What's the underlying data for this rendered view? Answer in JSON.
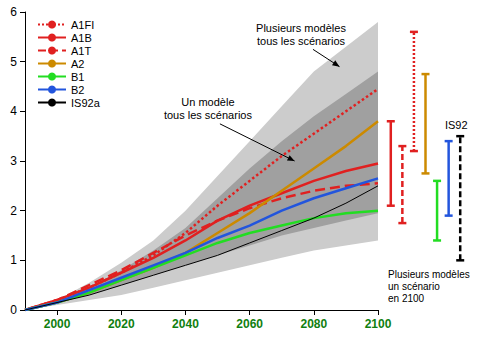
{
  "chart_data": {
    "type": "line",
    "x": [
      1990,
      2000,
      2010,
      2020,
      2030,
      2040,
      2050,
      2060,
      2070,
      2080,
      2090,
      2100
    ],
    "xlim": [
      1990,
      2100
    ],
    "xticks": [
      2000,
      2020,
      2040,
      2060,
      2080,
      2100
    ],
    "ylim": [
      0,
      6
    ],
    "yticks": [
      0,
      1,
      2,
      3,
      4,
      5,
      6
    ],
    "grid": false,
    "legend": "upper left",
    "marker": "none",
    "series": [
      {
        "name": "A1FI",
        "color": "#e02020",
        "line_style": "dotted",
        "values": [
          0,
          0.2,
          0.45,
          0.75,
          1.1,
          1.55,
          2.1,
          2.6,
          3.1,
          3.55,
          4.0,
          4.45
        ]
      },
      {
        "name": "A1B",
        "color": "#e02020",
        "line_style": "solid",
        "values": [
          0,
          0.2,
          0.45,
          0.75,
          1.05,
          1.4,
          1.8,
          2.1,
          2.35,
          2.6,
          2.8,
          2.95
        ]
      },
      {
        "name": "A1T",
        "color": "#e02020",
        "line_style": "dashed",
        "values": [
          0,
          0.2,
          0.5,
          0.8,
          1.15,
          1.5,
          1.8,
          2.05,
          2.25,
          2.4,
          2.5,
          2.55
        ]
      },
      {
        "name": "A2",
        "color": "#cc8a00",
        "line_style": "solid",
        "values": [
          0,
          0.15,
          0.35,
          0.6,
          0.85,
          1.15,
          1.55,
          1.95,
          2.4,
          2.85,
          3.3,
          3.8
        ]
      },
      {
        "name": "B1",
        "color": "#22dd22",
        "line_style": "solid",
        "values": [
          0,
          0.15,
          0.35,
          0.6,
          0.85,
          1.1,
          1.35,
          1.55,
          1.7,
          1.85,
          1.95,
          2.0
        ]
      },
      {
        "name": "B2",
        "color": "#2255dd",
        "line_style": "solid",
        "values": [
          0,
          0.15,
          0.4,
          0.65,
          0.9,
          1.15,
          1.45,
          1.7,
          2.0,
          2.25,
          2.45,
          2.65
        ]
      },
      {
        "name": "IS92a",
        "color": "#000000",
        "line_style": "solid",
        "values": [
          0,
          0.15,
          0.3,
          0.5,
          0.7,
          0.9,
          1.1,
          1.35,
          1.6,
          1.85,
          2.15,
          2.5
        ]
      }
    ],
    "bands": [
      {
        "label": "Plusieurs modèles\ntous les scénarios",
        "color": "#cccccc",
        "lower": [
          0,
          0.1,
          0.2,
          0.3,
          0.45,
          0.6,
          0.75,
          0.9,
          1.05,
          1.2,
          1.3,
          1.4
        ],
        "upper": [
          0,
          0.2,
          0.55,
          0.95,
          1.4,
          2.0,
          2.7,
          3.4,
          4.1,
          4.8,
          5.3,
          5.8
        ]
      },
      {
        "label": "Un modèle\ntous les scénarios",
        "color": "#a0a0a0",
        "lower": [
          0,
          0.15,
          0.3,
          0.5,
          0.7,
          0.9,
          1.1,
          1.3,
          1.5,
          1.65,
          1.8,
          1.95
        ],
        "upper": [
          0,
          0.2,
          0.45,
          0.8,
          1.2,
          1.65,
          2.25,
          2.85,
          3.4,
          3.9,
          4.35,
          4.8
        ]
      }
    ],
    "ranges_2100": {
      "title": "Plusieurs modèles\nun scénario\nen 2100",
      "items": [
        {
          "series": "A1B",
          "low": 2.1,
          "high": 3.8
        },
        {
          "series": "A1T",
          "low": 1.75,
          "high": 3.3
        },
        {
          "series": "A1FI",
          "low": 3.2,
          "high": 5.6
        },
        {
          "series": "A2",
          "low": 2.75,
          "high": 4.75
        },
        {
          "series": "B1",
          "low": 1.4,
          "high": 2.6
        },
        {
          "series": "B2",
          "low": 1.9,
          "high": 3.4
        },
        {
          "series": "IS92a",
          "label": "IS92",
          "line_style": "dashed",
          "low": 1.0,
          "high": 3.5
        }
      ]
    }
  }
}
